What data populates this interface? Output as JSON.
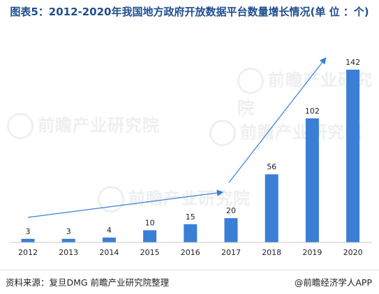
{
  "title": "图表5：2012-2020年我国地方政府开放数据平台数量增长情况(单 位 ：个)",
  "watermark": "前瞻产业研究院",
  "footer": {
    "source": "资料来源：复旦DMG 前瞻产业研究院整理",
    "brand": "@前瞻经济学人APP"
  },
  "colors": {
    "bar": "#3a7fd5",
    "arrow": "#3a7fd5",
    "title": "#1f4e8c"
  },
  "chart_data": {
    "type": "bar",
    "categories": [
      "2012",
      "2013",
      "2014",
      "2015",
      "2016",
      "2017",
      "2018",
      "2019",
      "2020"
    ],
    "values": [
      3,
      3,
      4,
      10,
      15,
      20,
      56,
      102,
      142
    ],
    "data_labels": [
      "3",
      "3",
      "4",
      "10",
      "15",
      "20",
      "56",
      "102",
      "142"
    ],
    "xlabel": "",
    "ylabel": "",
    "ylim": [
      0,
      142
    ],
    "grid": false,
    "legend": "none"
  }
}
